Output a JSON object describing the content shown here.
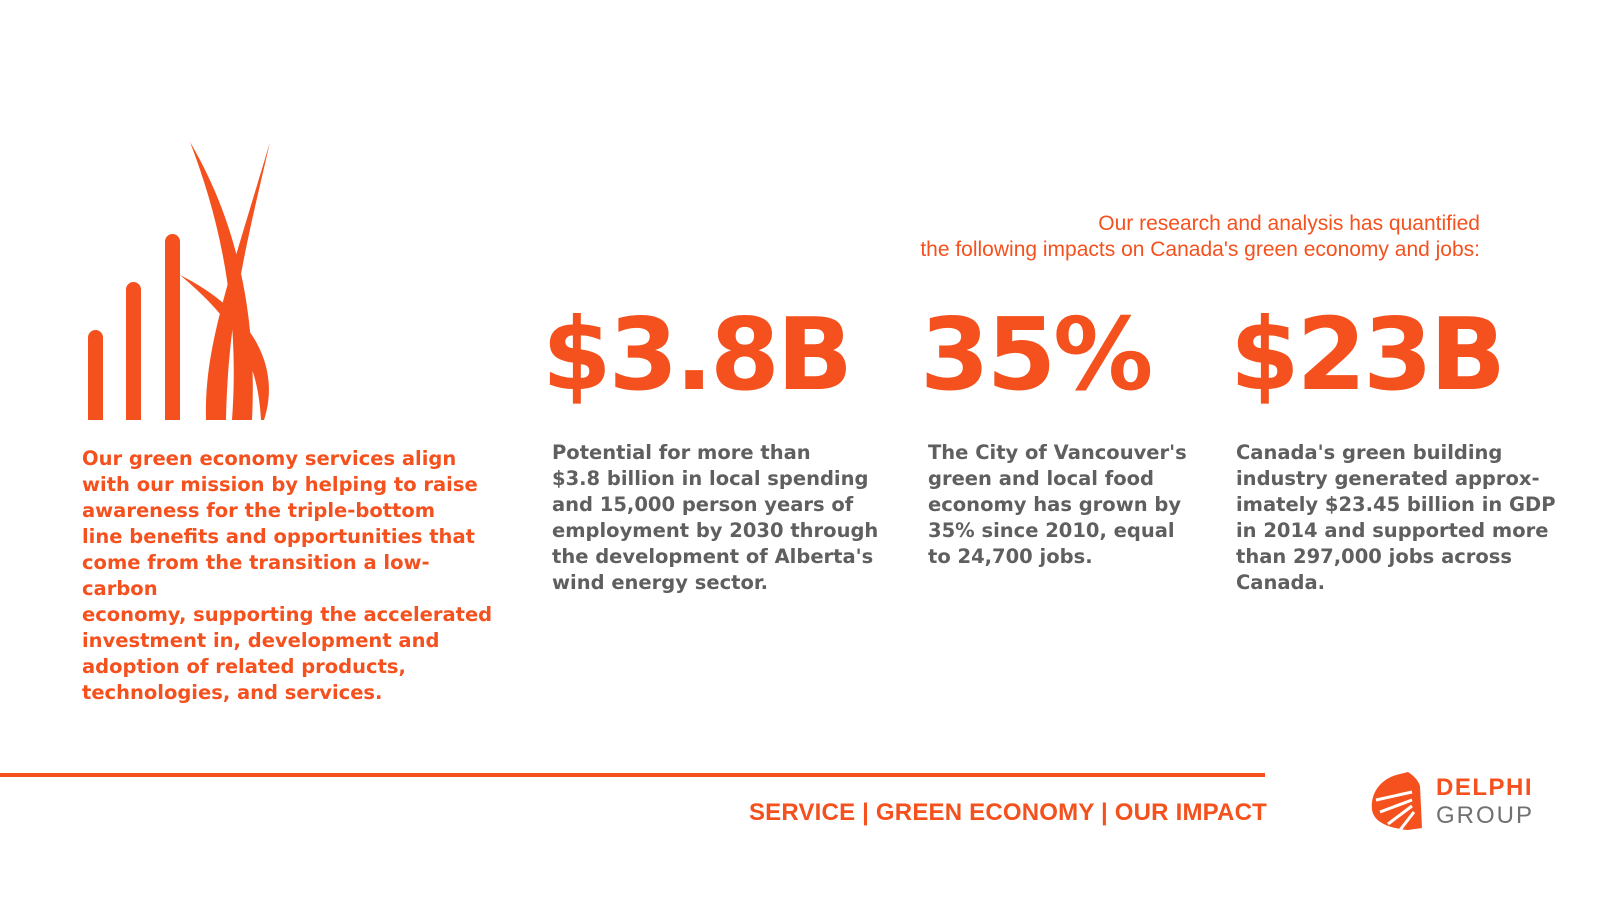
{
  "intro": {
    "text": "Our green economy services align\nwith our mission by helping to raise\nawareness for the triple-bottom\nline benefits and opportunities that\ncome from the transition a low-carbon\neconomy, supporting the accelerated\ninvestment in, development and\nadoption of related products,\ntechnologies, and services."
  },
  "header": {
    "line1": "Our research and analysis has quantified",
    "line2": "the following impacts on Canada's green economy and jobs:"
  },
  "stats": [
    {
      "figure": "$3.8B",
      "description": "Potential for more than\n$3.8 billion in local spending\nand 15,000 person years of\nemployment by 2030 through\nthe development of Alberta's\nwind energy sector."
    },
    {
      "figure": "35%",
      "description": "The City of Vancouver's\ngreen and local food\neconomy has grown by\n35% since 2010, equal\nto 24,700 jobs."
    },
    {
      "figure": "$23B",
      "description": "Canada's green building\nindustry generated approx-\nimately $23.45 billion in GDP\nin 2014 and supported more\nthan 297,000 jobs across\nCanada."
    }
  ],
  "footer": {
    "nav": "SERVICE | GREEN ECONOMY | OUR IMPACT"
  },
  "logo": {
    "name": "DELPHI",
    "sub": "GROUP"
  },
  "colors": {
    "accent": "#F4511E",
    "body_text": "#5f5f5f",
    "logo_grey": "#707070"
  },
  "icons": {
    "emblem": "growth-bars-grass-icon",
    "logo": "delphi-fan-logo-icon"
  }
}
